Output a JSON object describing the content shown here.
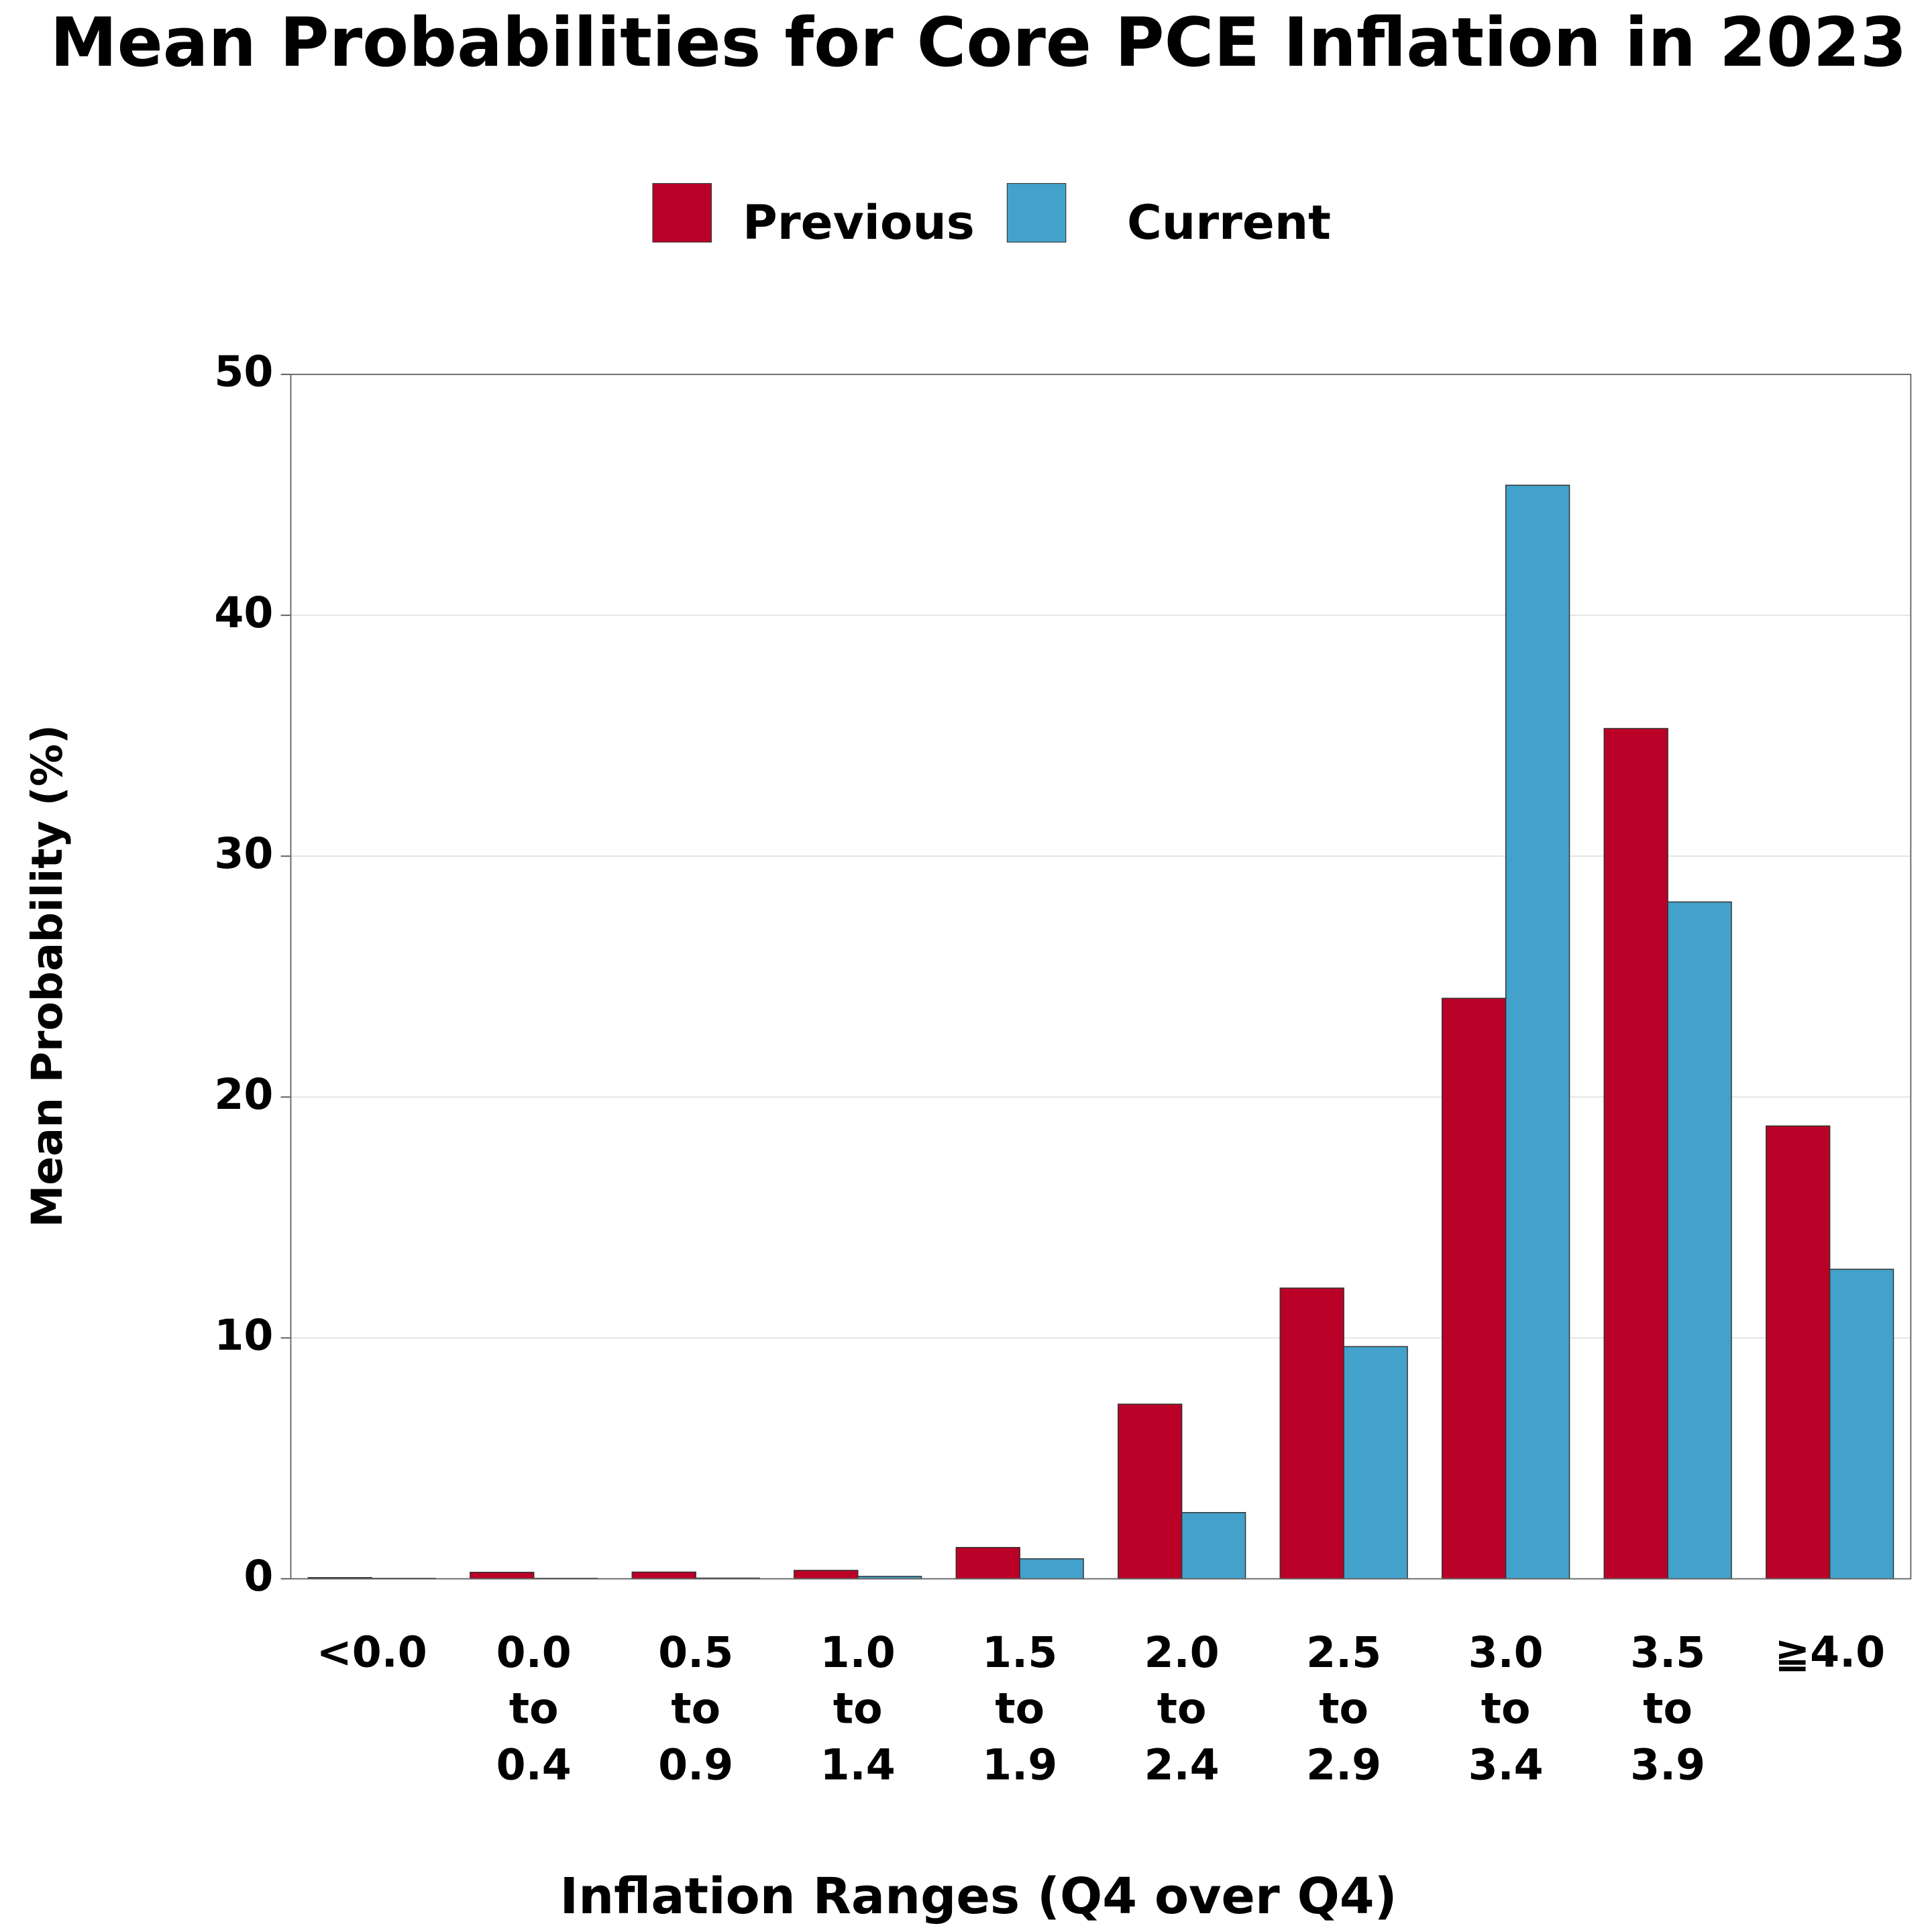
{
  "chart_data": {
    "type": "bar",
    "title": "Mean Probabilities for Core PCE Inflation in 2023",
    "x_label": "Inflation Ranges (Q4 over Q4)",
    "y_label": "Mean Probability (%)",
    "categories": [
      "<0.0",
      "0.0 to 0.4",
      "0.5 to 0.9",
      "1.0 to 1.4",
      "1.5 to 1.9",
      "2.0 to 2.4",
      "2.5 to 2.9",
      "3.0 to 3.4",
      "3.5 to 3.9",
      "≧4.0"
    ],
    "series": [
      {
        "name": "Previous",
        "color": "#bb0027",
        "values": [
          0.05,
          0.27,
          0.28,
          0.35,
          1.3,
          7.25,
          12.07,
          24.1,
          35.3,
          18.8
        ]
      },
      {
        "name": "Current",
        "color": "#43a2cb",
        "values": [
          0.02,
          0.02,
          0.03,
          0.1,
          0.83,
          2.75,
          9.64,
          45.4,
          28.1,
          12.85
        ]
      }
    ],
    "ylim": [
      0,
      50
    ],
    "yticks": [
      0,
      10,
      20,
      30,
      40,
      50
    ],
    "grid": true,
    "legend": "top"
  }
}
